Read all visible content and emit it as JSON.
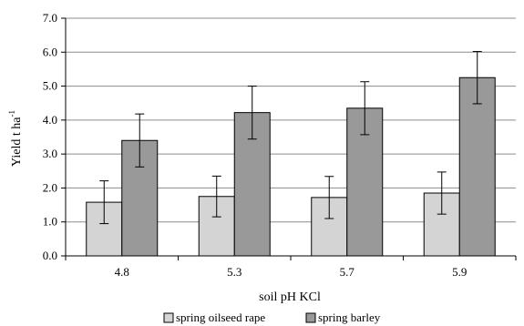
{
  "chart_data": {
    "type": "bar",
    "xlabel": "soil pH KCl",
    "ylabel": "Yield t ha",
    "ylabel_sup": "-1",
    "categories": [
      "4.8",
      "5.3",
      "5.7",
      "5.9"
    ],
    "ylim": [
      0,
      7
    ],
    "yticks": [
      "0.0",
      "1.0",
      "2.0",
      "3.0",
      "4.0",
      "5.0",
      "6.0",
      "7.0"
    ],
    "grid": true,
    "legend_position": "bottom",
    "series": [
      {
        "name": "spring oilseed rape",
        "color": "#d4d4d4",
        "values": [
          1.58,
          1.75,
          1.72,
          1.85
        ],
        "errors": [
          0.63,
          0.6,
          0.62,
          0.62
        ]
      },
      {
        "name": "spring barley",
        "color": "#999999",
        "values": [
          3.4,
          4.22,
          4.35,
          5.25
        ],
        "errors": [
          0.78,
          0.78,
          0.78,
          0.77
        ]
      }
    ]
  }
}
